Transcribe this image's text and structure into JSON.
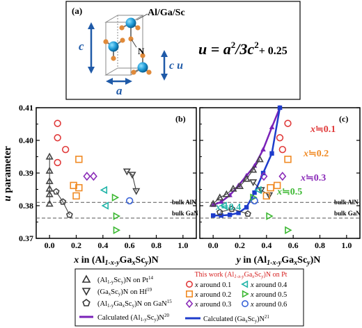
{
  "panel_a": {
    "label": "(a)",
    "atoms_label": "Al/Ga/Sc",
    "n_label": "N",
    "c_label": "c",
    "cu_label": "c u",
    "a_label": "a",
    "eq_lhs": "u",
    "eq_mid": " = a",
    "eq_sup1": "2",
    "eq_div": "/3c",
    "eq_sup2": "2",
    "eq_tail": "+ 0.25"
  },
  "chart_data": [
    {
      "type": "scatter",
      "panel": "(b)",
      "ylabel": "u parameter",
      "xlabel": "x in (Al1-x-yGaxScy)N",
      "xlim": [
        -0.1,
        1.1
      ],
      "ylim": [
        0.37,
        0.41
      ],
      "xticks": [
        "0.0",
        "0.2",
        "0.4",
        "0.6",
        "0.8",
        "1.0"
      ],
      "yticks": [
        "0.37",
        "0.38",
        "0.39",
        "0.40",
        "0.41"
      ],
      "reference_lines": [
        {
          "label": "bulk AlN",
          "y": 0.381
        },
        {
          "label": "bulk GaN",
          "y": 0.3762
        }
      ],
      "series": [
        {
          "name": "(Al1-ySсy)N on Pt",
          "marker": "triangle-up",
          "color": "#444444",
          "points": [
            [
              0.0,
              0.3806
            ],
            [
              0.0,
              0.3835
            ],
            [
              0.0,
              0.3852
            ],
            [
              0.0,
              0.3875
            ],
            [
              0.0,
              0.3907
            ],
            [
              0.0,
              0.395
            ]
          ]
        },
        {
          "name": "(GaxScy)N on Hf",
          "marker": "triangle-down",
          "color": "#444444",
          "points": [
            [
              0.58,
              0.3905
            ],
            [
              0.62,
              0.3895
            ],
            [
              0.65,
              0.3845
            ]
          ]
        },
        {
          "name": "(Al1-yGaxScy)N on GaN",
          "marker": "pentagon",
          "color": "#444444",
          "points": [
            [
              0.05,
              0.3843
            ],
            [
              0.1,
              0.3812
            ],
            [
              0.15,
              0.3772
            ]
          ]
        },
        {
          "name": "x around 0.1",
          "marker": "circle",
          "color": "#e03a3a",
          "points": [
            [
              0.06,
              0.4052
            ],
            [
              0.06,
              0.4008
            ],
            [
              0.06,
              0.3932
            ],
            [
              0.12,
              0.3972
            ]
          ]
        },
        {
          "name": "x around 0.2",
          "marker": "square",
          "color": "#f08a24",
          "points": [
            [
              0.18,
              0.3862
            ],
            [
              0.2,
              0.383
            ],
            [
              0.22,
              0.3855
            ],
            [
              0.22,
              0.3942
            ]
          ]
        },
        {
          "name": "x around 0.3",
          "marker": "diamond",
          "color": "#8a2bb8",
          "points": [
            [
              0.28,
              0.389
            ],
            [
              0.33,
              0.389
            ]
          ]
        },
        {
          "name": "x around 0.4",
          "marker": "triangle-left",
          "color": "#20b4a8",
          "points": [
            [
              0.41,
              0.3848
            ],
            [
              0.42,
              0.38
            ]
          ]
        },
        {
          "name": "x around 0.5",
          "marker": "triangle-right",
          "color": "#3cb832",
          "points": [
            [
              0.49,
              0.3825
            ],
            [
              0.5,
              0.3768
            ],
            [
              0.5,
              0.3725
            ]
          ]
        },
        {
          "name": "x around 0.6",
          "marker": "circle",
          "color": "#3a64d8",
          "points": [
            [
              0.6,
              0.3815
            ]
          ]
        }
      ]
    },
    {
      "type": "scatter",
      "panel": "(c)",
      "xlabel": "y in (Al1-x-yGaxScy)N",
      "xlim": [
        -0.1,
        1.1
      ],
      "ylim": [
        0.37,
        0.41
      ],
      "xticks": [
        "0.0",
        "0.2",
        "0.4",
        "0.6",
        "0.8",
        "1.0"
      ],
      "reference_lines": [
        {
          "label": "bulk AlN",
          "y": 0.381
        },
        {
          "label": "bulk GaN",
          "y": 0.3762
        }
      ],
      "annotations": [
        {
          "text": "x",
          "suffix": "≒0.1",
          "color": "#e03a3a"
        },
        {
          "text": "x",
          "suffix": "≒0.2",
          "color": "#f08a24"
        },
        {
          "text": "x",
          "suffix": "≒0.3",
          "color": "#8a2bb8"
        },
        {
          "text": "x",
          "suffix": "≒0.5",
          "color": "#3cb832"
        },
        {
          "text": "x",
          "suffix": "≒0.4",
          "color": "#20b4a8"
        }
      ],
      "lines": [
        {
          "name": "Calculated (Al1-ySсy)N",
          "color": "#7a22b8",
          "points": [
            [
              0.0,
              0.3802
            ],
            [
              0.06,
              0.3812
            ],
            [
              0.125,
              0.3832
            ],
            [
              0.19,
              0.3862
            ],
            [
              0.25,
              0.3892
            ],
            [
              0.31,
              0.3922
            ],
            [
              0.375,
              0.3972
            ],
            [
              0.44,
              0.404
            ],
            [
              0.5,
              0.41
            ]
          ]
        },
        {
          "name": "Calculated (GaxScy)N",
          "color": "#1e3ccc",
          "points": [
            [
              0.0,
              0.377
            ],
            [
              0.06,
              0.377
            ],
            [
              0.125,
              0.3772
            ],
            [
              0.19,
              0.3778
            ],
            [
              0.25,
              0.3795
            ],
            [
              0.31,
              0.384
            ],
            [
              0.375,
              0.39
            ],
            [
              0.44,
              0.396
            ],
            [
              0.5,
              0.41
            ]
          ]
        }
      ],
      "series": [
        {
          "name": "(Al1-ySсy)N on Pt",
          "marker": "triangle-up",
          "color": "#444444",
          "points": [
            [
              0.0,
              0.3806
            ],
            [
              0.05,
              0.3825
            ],
            [
              0.1,
              0.3835
            ],
            [
              0.15,
              0.3852
            ],
            [
              0.2,
              0.386
            ],
            [
              0.25,
              0.3882
            ],
            [
              0.3,
              0.391
            ],
            [
              0.35,
              0.3942
            ]
          ]
        },
        {
          "name": "(GaxScy)N on Hf",
          "marker": "triangle-down",
          "color": "#444444",
          "points": [
            [
              0.3,
              0.3872
            ],
            [
              0.36,
              0.3848
            ],
            [
              0.42,
              0.3832
            ]
          ]
        },
        {
          "name": "(Al1-yGaxScy)N on GaN",
          "marker": "pentagon",
          "color": "#444444",
          "points": [
            [
              0.05,
              0.378
            ],
            [
              0.14,
              0.379
            ],
            [
              0.26,
              0.3775
            ]
          ]
        },
        {
          "name": "x around 0.1",
          "marker": "circle",
          "color": "#e03a3a",
          "points": [
            [
              0.5,
              0.4008
            ],
            [
              0.52,
              0.3972
            ],
            [
              0.56,
              0.4052
            ]
          ]
        },
        {
          "name": "x around 0.2",
          "marker": "square",
          "color": "#f08a24",
          "points": [
            [
              0.4,
              0.383
            ],
            [
              0.43,
              0.3855
            ],
            [
              0.48,
              0.3862
            ],
            [
              0.56,
              0.3942
            ]
          ]
        },
        {
          "name": "x around 0.3",
          "marker": "diamond",
          "color": "#8a2bb8",
          "points": [
            [
              0.38,
              0.389
            ],
            [
              0.52,
              0.389
            ]
          ]
        },
        {
          "name": "x around 0.4",
          "marker": "triangle-left",
          "color": "#20b4a8",
          "points": [
            [
              0.08,
              0.38
            ],
            [
              0.34,
              0.3848
            ]
          ]
        },
        {
          "name": "x around 0.5",
          "marker": "triangle-right",
          "color": "#3cb832",
          "points": [
            [
              0.3,
              0.3825
            ],
            [
              0.42,
              0.3768
            ],
            [
              0.56,
              0.3725
            ]
          ]
        },
        {
          "name": "x around 0.6",
          "marker": "circle",
          "color": "#3a64d8",
          "points": [
            [
              0.31,
              0.3815
            ]
          ]
        }
      ]
    }
  ],
  "legend": {
    "left": [
      {
        "marker": "triangle-up",
        "text": "(Al",
        "sub1": "1-y",
        "mid": "Sc",
        "sub2": "y",
        "tail": ")N on Pt",
        "sup": "14"
      },
      {
        "marker": "triangle-down",
        "text": "(Ga",
        "sub1": "x",
        "mid": "Sc",
        "sub2": "y",
        "tail": ")N on Hf",
        "sup": "19"
      },
      {
        "marker": "pentagon",
        "text": "(Al",
        "sub1": "1-y",
        "mid": "Ga",
        "sub2": "x",
        "mid2": "Sc",
        "sub3": "y",
        "tail": ")N on GaN",
        "sup": "15"
      },
      {
        "marker": "line-purple",
        "text": "Calculated (Al",
        "sub1": "1-y",
        "mid": "Sc",
        "sub2": "y",
        "tail": ")N",
        "sup": "20"
      }
    ],
    "right_title": "This work (Al1-x-yGaxScy)N on Pt",
    "right": [
      {
        "marker": "circle",
        "color": "#e03a3a",
        "text": "x around 0.1"
      },
      {
        "marker": "triangle-left",
        "color": "#20b4a8",
        "text": "x around 0.4"
      },
      {
        "marker": "square",
        "color": "#f08a24",
        "text": "x around 0.2"
      },
      {
        "marker": "triangle-right",
        "color": "#3cb832",
        "text": "x around 0.5"
      },
      {
        "marker": "diamond",
        "color": "#8a2bb8",
        "text": "x around 0.3"
      },
      {
        "marker": "circle",
        "color": "#3a64d8",
        "text": "x around 0.6"
      }
    ],
    "calc_gasc": {
      "text": "Calculated (Ga",
      "sub1": "x",
      "mid": "Sc",
      "sub2": "y",
      "tail": ")N",
      "sup": "21"
    }
  }
}
